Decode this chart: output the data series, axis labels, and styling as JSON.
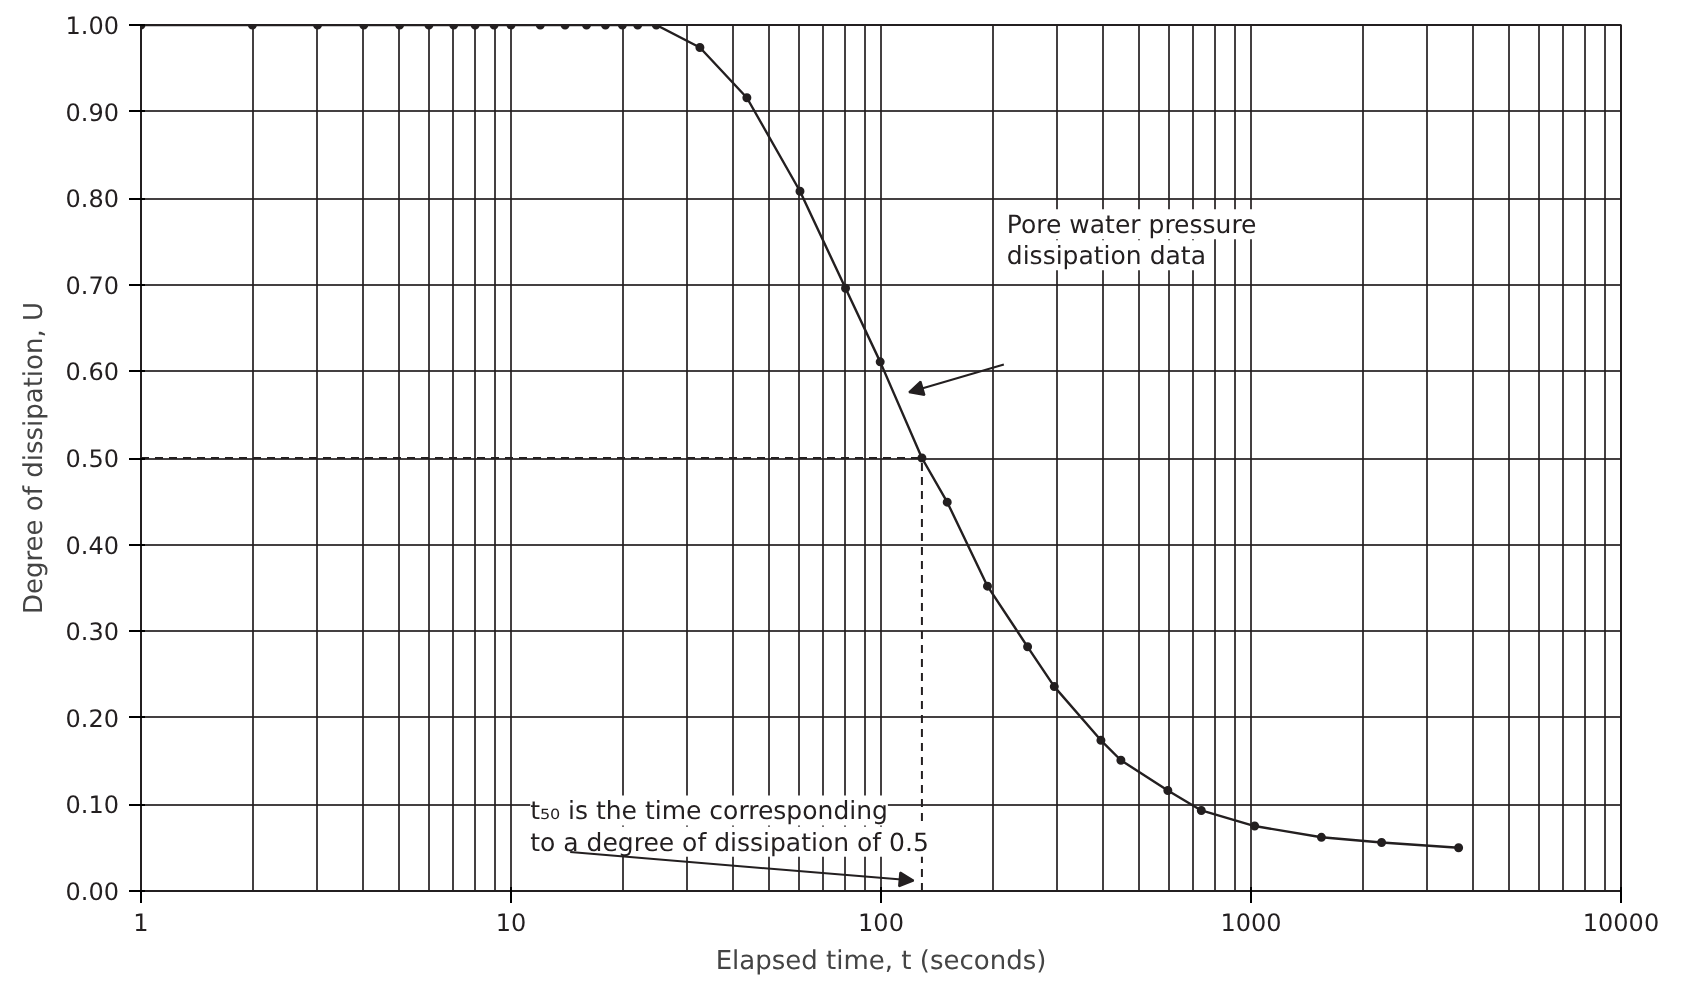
{
  "chart_data": {
    "type": "line",
    "xlabel": "Elapsed time, t (seconds)",
    "ylabel": "Degree of dissipation, U",
    "x": [
      1,
      2,
      3,
      4,
      5,
      6,
      7,
      8,
      9,
      10,
      12,
      14,
      16,
      18,
      20,
      22,
      24.7,
      32.4,
      43.4,
      60.4,
      80.2,
      99.5,
      129,
      151,
      194,
      249,
      294,
      393,
      445,
      596,
      734,
      1023,
      1550,
      2254,
      3640
    ],
    "series": [
      {
        "color": "#231f20",
        "values": [
          1,
          1,
          1,
          1,
          1,
          1,
          1,
          1,
          1,
          1,
          1,
          1,
          1,
          1,
          1,
          1,
          1,
          0.974,
          0.916,
          0.808,
          0.696,
          0.611,
          0.5,
          0.449,
          0.352,
          0.282,
          0.236,
          0.174,
          0.151,
          0.116,
          0.093,
          0.075,
          0.062,
          0.056,
          0.05
        ]
      }
    ],
    "log": "x",
    "xlim": [
      1,
      10000
    ],
    "ylim": [
      0,
      1
    ],
    "xticks": [
      1,
      10,
      100,
      1000,
      10000
    ],
    "yticks": [
      {
        "value": 0,
        "label": "0.00"
      },
      {
        "value": 0.1,
        "label": "0.10"
      },
      {
        "value": 0.2,
        "label": "0.20"
      },
      {
        "value": 0.3,
        "label": "0.30"
      },
      {
        "value": 0.4,
        "label": "0.40"
      },
      {
        "value": 0.5,
        "label": "0.50"
      },
      {
        "value": 0.6,
        "label": "0.60"
      },
      {
        "value": 0.7,
        "label": "0.70"
      },
      {
        "value": 0.8,
        "label": "0.80"
      },
      {
        "value": 0.9,
        "label": "0.90"
      },
      {
        "value": 1,
        "label": "1.00"
      }
    ],
    "ref_lines": [
      {
        "axis": "y",
        "value": 0.5,
        "line_style": "dashed"
      },
      {
        "axis": "x",
        "value": 129,
        "line_style": "dashed"
      }
    ],
    "annotations": [
      "Pore water pressure\ndissipation data",
      "t₅₀ is the time corresponding\nto a degree of dissipation of 0.5"
    ],
    "grid": true,
    "marker": "circle",
    "line_style": "solid"
  }
}
